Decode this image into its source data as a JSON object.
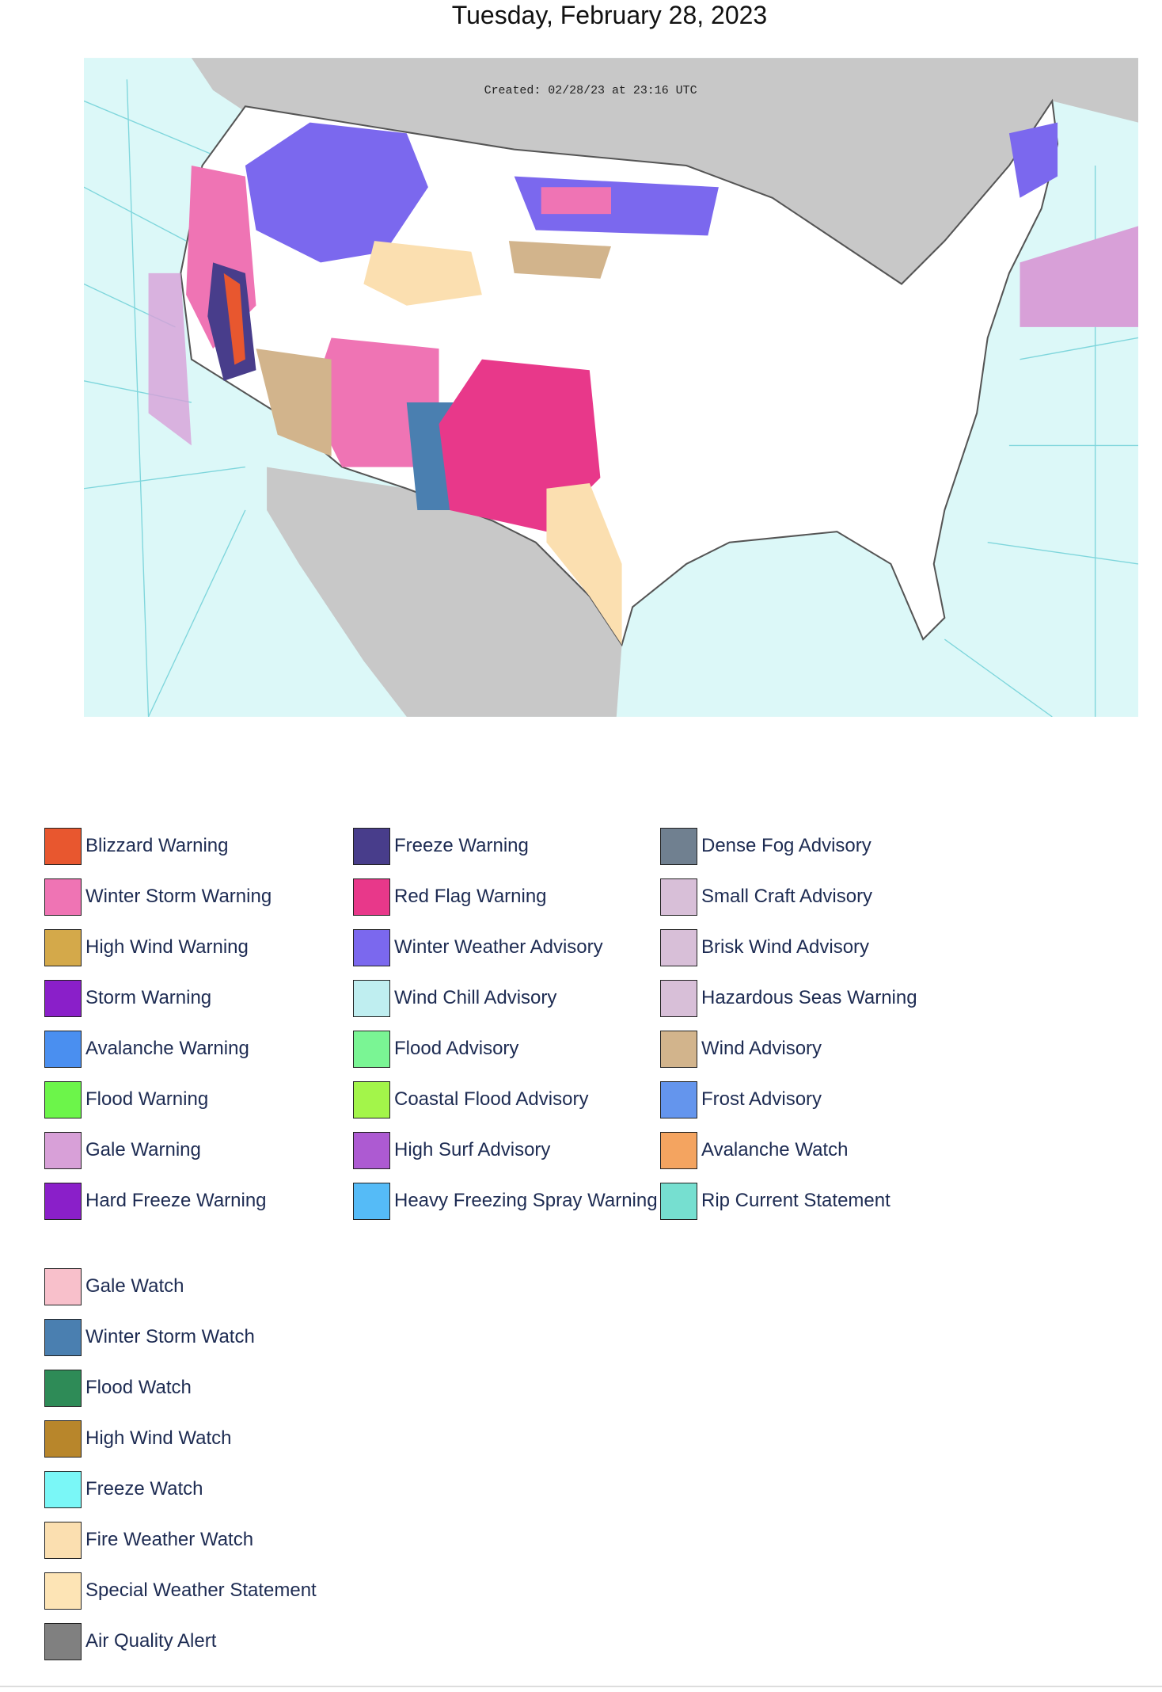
{
  "title": "Tuesday, February 28, 2023",
  "map": {
    "created": "Created: 02/28/23 at 23:16 UTC"
  },
  "legend": {
    "groups": [
      [
        [
          {
            "label": "Blizzard Warning",
            "color": "#e8572f"
          },
          {
            "label": "Winter Storm Warning",
            "color": "#ef74b4"
          },
          {
            "label": "High Wind Warning",
            "color": "#d4a94a"
          },
          {
            "label": "Storm Warning",
            "color": "#8a1fc9"
          },
          {
            "label": "Avalanche Warning",
            "color": "#4a8ff0"
          },
          {
            "label": "Flood Warning",
            "color": "#6cf54a"
          },
          {
            "label": "Gale Warning",
            "color": "#d8a0d8"
          },
          {
            "label": "Hard Freeze Warning",
            "color": "#8a1fc9"
          }
        ],
        [
          {
            "label": "Freeze Warning",
            "color": "#483d8b"
          },
          {
            "label": "Red Flag Warning",
            "color": "#e8388a"
          },
          {
            "label": "Winter Weather Advisory",
            "color": "#7b68ee"
          },
          {
            "label": "Wind Chill Advisory",
            "color": "#bfeef0"
          },
          {
            "label": "Flood Advisory",
            "color": "#7af594"
          },
          {
            "label": "Coastal Flood Advisory",
            "color": "#a3f54a"
          },
          {
            "label": "High Surf Advisory",
            "color": "#ad5ad2"
          },
          {
            "label": "Heavy Freezing Spray Warning",
            "color": "#55bbf7"
          }
        ],
        [
          {
            "label": "Dense Fog Advisory",
            "color": "#708090"
          },
          {
            "label": "Small Craft Advisory",
            "color": "#d8bfd8"
          },
          {
            "label": "Brisk Wind Advisory",
            "color": "#d8bfd8"
          },
          {
            "label": "Hazardous Seas Warning",
            "color": "#d8bfd8"
          },
          {
            "label": "Wind Advisory",
            "color": "#d2b48c"
          },
          {
            "label": "Frost Advisory",
            "color": "#6495ed"
          },
          {
            "label": "Avalanche Watch",
            "color": "#f4a460"
          },
          {
            "label": "Rip Current Statement",
            "color": "#76dfd0"
          }
        ]
      ],
      [
        [
          {
            "label": "Gale Watch",
            "color": "#f8c0cb"
          },
          {
            "label": "Winter Storm Watch",
            "color": "#4a7fb0"
          },
          {
            "label": "Flood Watch",
            "color": "#2e8b57"
          },
          {
            "label": "High Wind Watch",
            "color": "#b8862b"
          },
          {
            "label": "Freeze Watch",
            "color": "#7af7f7"
          },
          {
            "label": "Fire Weather Watch",
            "color": "#fbdfb0"
          },
          {
            "label": "Special Weather Statement",
            "color": "#fde4b5"
          },
          {
            "label": "Air Quality Alert",
            "color": "#808080"
          }
        ]
      ]
    ]
  }
}
